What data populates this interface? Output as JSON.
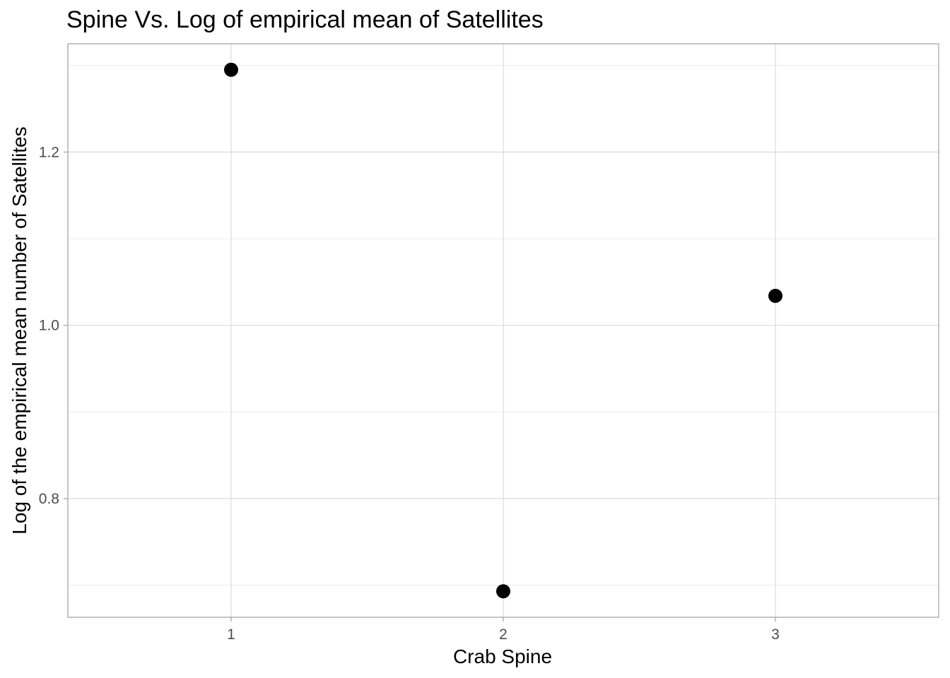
{
  "chart_data": {
    "type": "scatter",
    "title": "Spine Vs. Log of empirical mean of Satellites",
    "xlabel": "Crab Spine",
    "ylabel": "Log of the empirical mean number of Satellites",
    "categories": [
      "1",
      "2",
      "3"
    ],
    "x": [
      1,
      2,
      3
    ],
    "y": [
      1.295,
      0.693,
      1.034
    ],
    "xlim": [
      0.4,
      3.6
    ],
    "ylim": [
      0.663,
      1.325
    ],
    "y_major_ticks": [
      0.8,
      1.0,
      1.2
    ],
    "y_tick_labels": [
      "0.8",
      "1.0",
      "1.2"
    ],
    "y_minor_ticks": [
      0.7,
      0.9,
      1.1,
      1.3
    ],
    "grid": true,
    "point_color": "#000000",
    "grid_color": "#dedede",
    "border_color": "#a6a6a6"
  }
}
